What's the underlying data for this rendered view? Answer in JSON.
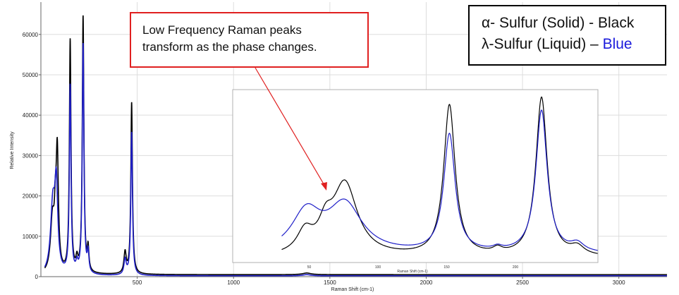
{
  "chart_data": [
    {
      "type": "line",
      "xlabel": "Raman Shift (cm-1)",
      "ylabel": "Relative Intensity",
      "xlim": [
        0,
        3250
      ],
      "ylim": [
        0,
        68000
      ],
      "x_ticks": [
        500,
        1000,
        1500,
        2000,
        2500,
        3000
      ],
      "y_ticks": [
        0,
        10000,
        20000,
        30000,
        40000,
        50000,
        60000
      ],
      "grid": true,
      "colors": {
        "solid": "#000000",
        "liquid": "#1f1fc8"
      },
      "series": [
        {
          "key": "solid",
          "peaks": [
            {
              "x": 60,
              "height": 13000,
              "width": 12
            },
            {
              "x": 75,
              "height": 9500,
              "width": 6
            },
            {
              "x": 85,
              "height": 28500,
              "width": 7
            },
            {
              "x": 152,
              "height": 57500,
              "width": 5
            },
            {
              "x": 187,
              "height": 2800,
              "width": 6
            },
            {
              "x": 219,
              "height": 63500,
              "width": 5
            },
            {
              "x": 245,
              "height": 5600,
              "width": 5
            },
            {
              "x": 437,
              "height": 5200,
              "width": 7
            },
            {
              "x": 471,
              "height": 42500,
              "width": 5
            },
            {
              "x": 1380,
              "height": 400,
              "width": 25
            }
          ],
          "baseline": 500
        },
        {
          "key": "liquid",
          "peaks": [
            {
              "x": 62,
              "height": 17000,
              "width": 14
            },
            {
              "x": 80,
              "height": 20000,
              "width": 9
            },
            {
              "x": 152,
              "height": 46500,
              "width": 5
            },
            {
              "x": 187,
              "height": 2200,
              "width": 6
            },
            {
              "x": 219,
              "height": 57000,
              "width": 5
            },
            {
              "x": 245,
              "height": 5000,
              "width": 5
            },
            {
              "x": 437,
              "height": 3800,
              "width": 7
            },
            {
              "x": 471,
              "height": 35500,
              "width": 5
            },
            {
              "x": 1380,
              "height": 300,
              "width": 25
            }
          ],
          "baseline": 200
        }
      ]
    },
    {
      "type": "line",
      "role": "inset-zoom",
      "xlabel": "Raman Shift (cm-1)",
      "xlim": [
        0,
        260
      ],
      "ylim": [
        0,
        100
      ],
      "x_ticks": [
        50,
        100,
        150,
        200
      ],
      "colors": {
        "solid": "#000000",
        "liquid": "#1f1fc8"
      },
      "series": [
        {
          "key": "solid",
          "baseline": 3,
          "peaks": [
            {
              "x": 47,
              "height": 13,
              "width": 7
            },
            {
              "x": 62,
              "height": 14,
              "width": 6
            },
            {
              "x": 76,
              "height": 44,
              "width": 11
            },
            {
              "x": 152,
              "height": 92,
              "width": 5
            },
            {
              "x": 187,
              "height": 3,
              "width": 4
            },
            {
              "x": 219,
              "height": 97,
              "width": 5
            },
            {
              "x": 245,
              "height": 5,
              "width": 6
            }
          ]
        },
        {
          "key": "liquid",
          "baseline": 5,
          "peaks": [
            {
              "x": 48,
              "height": 24,
              "width": 13
            },
            {
              "x": 76,
              "height": 29,
              "width": 15
            },
            {
              "x": 152,
              "height": 72,
              "width": 5
            },
            {
              "x": 187,
              "height": 2,
              "width": 4
            },
            {
              "x": 219,
              "height": 87,
              "width": 5
            },
            {
              "x": 245,
              "height": 5,
              "width": 6
            }
          ]
        }
      ]
    }
  ],
  "callout": {
    "line1": "Low Frequency Raman peaks",
    "line2": "transform as the phase changes."
  },
  "legend": {
    "line1": "α- Sulfur (Solid) - Black",
    "line2_prefix": "λ-Sulfur (Liquid) – ",
    "line2_color_word": "Blue"
  }
}
